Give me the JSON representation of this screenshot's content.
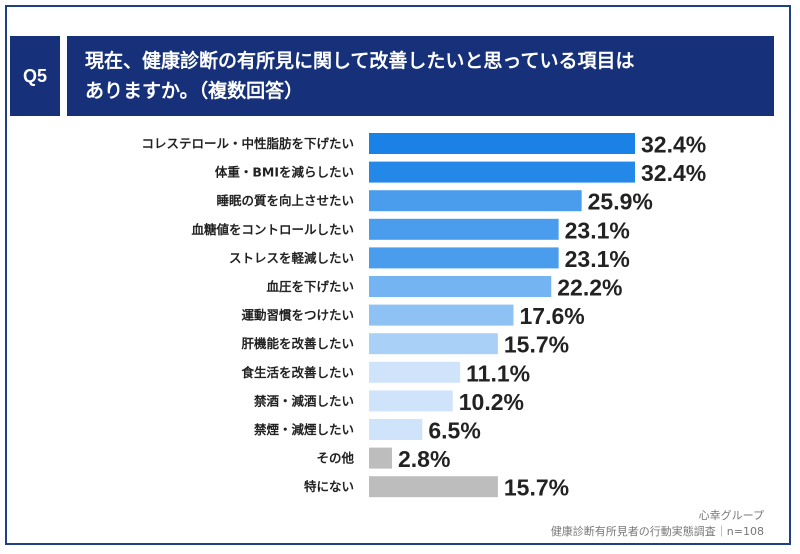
{
  "header": {
    "badge": "Q5",
    "title_line1": "現在、健康診断の有所見に関して改善したいと思っている項目は",
    "title_line2": "ありますか。（複数回答）"
  },
  "chart_data": {
    "type": "bar",
    "orientation": "horizontal",
    "categories": [
      "コレステロール・中性脂肪を下げたい",
      "体重・BMIを減らしたい",
      "睡眠の質を向上させたい",
      "血糖値をコントロールしたい",
      "ストレスを軽減したい",
      "血圧を下げたい",
      "運動習慣をつけたい",
      "肝機能を改善したい",
      "食生活を改善したい",
      "禁酒・減酒したい",
      "禁煙・減煙したい",
      "その他",
      "特にない"
    ],
    "values": [
      32.4,
      32.4,
      25.9,
      23.1,
      23.1,
      22.2,
      17.6,
      15.7,
      11.1,
      10.2,
      6.5,
      2.8,
      15.7
    ],
    "value_labels": [
      "32.4%",
      "32.4%",
      "25.9%",
      "23.1%",
      "23.1%",
      "22.2%",
      "17.6%",
      "15.7%",
      "11.1%",
      "10.2%",
      "6.5%",
      "2.8%",
      "15.7%"
    ],
    "colors": [
      "#1a82e6",
      "#2488e8",
      "#4a9ded",
      "#4a9ded",
      "#4a9ded",
      "#74b4f2",
      "#8ec2f5",
      "#a9d1f8",
      "#cfe4fb",
      "#cfe4fb",
      "#cfe4fb",
      "#bdbdbd",
      "#bdbdbd"
    ],
    "grid": false
  },
  "footer": {
    "source_line1": "心幸グループ",
    "source_line2": "健康診断有所見者の行動実態調査｜n=108"
  }
}
